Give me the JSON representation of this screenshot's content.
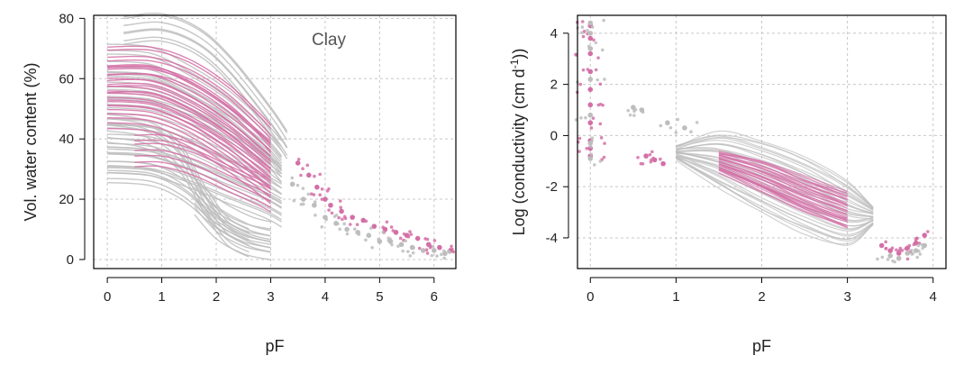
{
  "colors": {
    "grey": "#bdbdbd",
    "pink": "#d36fa6",
    "grid": "#c8c8c8",
    "frame": "#000000"
  },
  "chart_data": [
    {
      "type": "scatter",
      "xlabel": "pF",
      "ylabel": "Vol. water content (%)",
      "annotation": "Clay",
      "xlim": [
        -0.25,
        6.4
      ],
      "ylim": [
        -3,
        81
      ],
      "xticks": [
        0,
        1,
        2,
        3,
        4,
        5,
        6
      ],
      "yticks": [
        0,
        20,
        40,
        60,
        80
      ],
      "grid": true,
      "series": [
        {
          "color": "#bdbdbd",
          "style": "lines",
          "curves": [
            {
              "x": [
                0.3,
                1.0,
                1.7,
                2.3,
                3.0,
                3.3
              ],
              "y": [
                76,
                77,
                72,
                62,
                46,
                38
              ]
            },
            {
              "x": [
                0.0,
                0.8,
                1.5,
                2.2,
                2.9,
                3.2
              ],
              "y": [
                66,
                65,
                59,
                51,
                40,
                34
              ]
            },
            {
              "x": [
                0.0,
                0.8,
                1.5,
                2.2,
                2.9,
                3.2
              ],
              "y": [
                58,
                57,
                52,
                45,
                36,
                30
              ]
            },
            {
              "x": [
                0.0,
                0.8,
                1.5,
                2.2,
                2.9,
                3.2
              ],
              "y": [
                50,
                49,
                45,
                39,
                31,
                27
              ]
            },
            {
              "x": [
                0.0,
                0.7,
                1.3,
                1.8,
                2.2,
                2.6
              ],
              "y": [
                44,
                42,
                35,
                20,
                10,
                6
              ]
            },
            {
              "x": [
                0.0,
                0.8,
                1.5,
                2.2,
                2.9,
                3.2
              ],
              "y": [
                40,
                39,
                35,
                29,
                23,
                20
              ]
            },
            {
              "x": [
                0.0,
                0.8,
                1.5,
                2.2,
                2.9,
                3.2
              ],
              "y": [
                33,
                32,
                28,
                23,
                18,
                15
              ]
            },
            {
              "x": [
                0.0,
                0.8,
                1.4,
                2.0,
                2.6,
                3.0
              ],
              "y": [
                30,
                29,
                24,
                15,
                9,
                7
              ]
            },
            {
              "x": [
                1.6,
                2.0,
                2.5,
                3.0
              ],
              "y": [
                20,
                12,
                7,
                5
              ]
            }
          ]
        },
        {
          "color": "#d36fa6",
          "style": "lines",
          "curves": [
            {
              "x": [
                0.0,
                0.8,
                1.5,
                2.2,
                2.8,
                3.0
              ],
              "y": [
                66,
                66,
                62,
                54,
                44,
                40
              ]
            },
            {
              "x": [
                0.0,
                0.8,
                1.5,
                2.2,
                2.8,
                3.0
              ],
              "y": [
                60,
                60,
                55,
                47,
                38,
                35
              ]
            },
            {
              "x": [
                0.0,
                0.8,
                1.5,
                2.2,
                2.8,
                3.0
              ],
              "y": [
                55,
                54,
                49,
                41,
                32,
                29
              ]
            },
            {
              "x": [
                0.0,
                0.8,
                1.5,
                2.2,
                2.8,
                3.0
              ],
              "y": [
                49,
                48,
                43,
                35,
                27,
                24
              ]
            },
            {
              "x": [
                0.5,
                1.0,
                1.6,
                2.2,
                2.8,
                3.0
              ],
              "y": [
                36,
                36,
                33,
                28,
                23,
                21
              ]
            }
          ]
        },
        {
          "color": "#d36fa6",
          "style": "points",
          "x": [
            3.5,
            3.7,
            3.85,
            4.0,
            4.1,
            4.3,
            4.5,
            4.7,
            4.9,
            5.1,
            5.3,
            5.5,
            5.7,
            5.9,
            6.1,
            6.3
          ],
          "y": [
            32,
            28,
            24,
            20,
            18,
            16,
            14,
            13,
            11,
            10,
            9,
            8,
            7,
            5,
            4,
            3
          ]
        },
        {
          "color": "#bdbdbd",
          "style": "points",
          "x": [
            3.4,
            3.6,
            3.8,
            4.0,
            4.2,
            4.4,
            4.6,
            4.8,
            5.0,
            5.2,
            5.4,
            5.6,
            5.8,
            6.0,
            6.2
          ],
          "y": [
            25,
            20,
            18,
            14,
            12,
            10,
            9,
            8,
            6,
            6,
            5,
            4,
            3,
            3,
            2
          ]
        }
      ]
    },
    {
      "type": "scatter",
      "xlabel": "pF",
      "ylabel": "Log (conductivity (cm d",
      "ylabel_sup": "-1",
      "ylabel_end": "))",
      "xlim": [
        -0.15,
        4.15
      ],
      "ylim": [
        -5.2,
        4.7
      ],
      "xticks": [
        0,
        1,
        2,
        3,
        4
      ],
      "yticks": [
        -4,
        -2,
        0,
        2,
        4
      ],
      "grid": true,
      "series": [
        {
          "color": "#bdbdbd",
          "style": "band",
          "x": [
            1.0,
            1.5,
            2.0,
            2.5,
            3.0,
            3.3
          ],
          "upper": [
            -0.4,
            0.1,
            -0.2,
            -0.8,
            -1.8,
            -2.8
          ],
          "lower": [
            -0.9,
            -2.0,
            -3.0,
            -3.8,
            -4.3,
            -3.5
          ]
        },
        {
          "color": "#d36fa6",
          "style": "band",
          "x": [
            1.5,
            2.0,
            2.5,
            3.0
          ],
          "upper": [
            -0.6,
            -1.0,
            -1.6,
            -2.2
          ],
          "lower": [
            -1.4,
            -2.2,
            -3.0,
            -3.6
          ]
        },
        {
          "color": "#d36fa6",
          "style": "points",
          "x": [
            0,
            0,
            0,
            0,
            0,
            0,
            0,
            0,
            0,
            0,
            0.65,
            0.75,
            0.85,
            3.4,
            3.5,
            3.6,
            3.7,
            3.8,
            3.9
          ],
          "y": [
            4.3,
            3.8,
            3.2,
            2.5,
            1.8,
            1.2,
            0.5,
            -0.2,
            -0.5,
            -0.8,
            -0.8,
            -0.95,
            -1.1,
            -4.3,
            -4.5,
            -4.6,
            -4.4,
            -4.2,
            -3.9
          ]
        },
        {
          "color": "#bdbdbd",
          "style": "points",
          "x": [
            0,
            0,
            0,
            0,
            0,
            0,
            0,
            0.5,
            0.6,
            0.9,
            1.1,
            3.5,
            3.6,
            3.7,
            3.8,
            3.9
          ],
          "y": [
            4.4,
            4.0,
            3.4,
            2.2,
            0.8,
            -0.3,
            -0.9,
            1.1,
            1.0,
            0.5,
            0.3,
            -4.7,
            -4.8,
            -4.6,
            -4.5,
            -4.3
          ]
        }
      ]
    }
  ]
}
